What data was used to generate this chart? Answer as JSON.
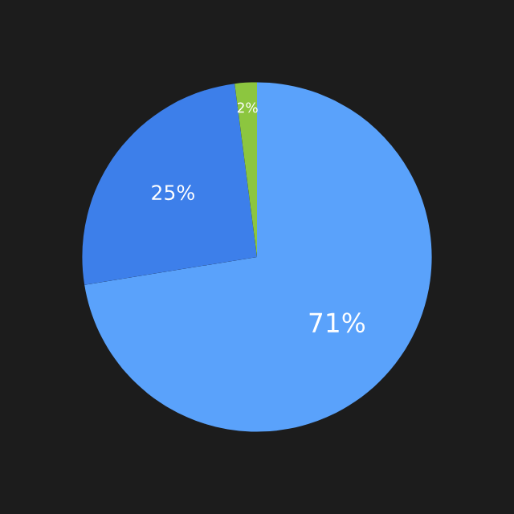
{
  "chart_data": {
    "type": "pie",
    "categories": [
      null,
      null,
      null
    ],
    "values": [
      71,
      25,
      2
    ],
    "colors": [
      "#5aa2fb",
      "#3d7fea",
      "#8cc63f"
    ],
    "value_labels": [
      "71%",
      "25%",
      "2%"
    ],
    "legend": false
  }
}
